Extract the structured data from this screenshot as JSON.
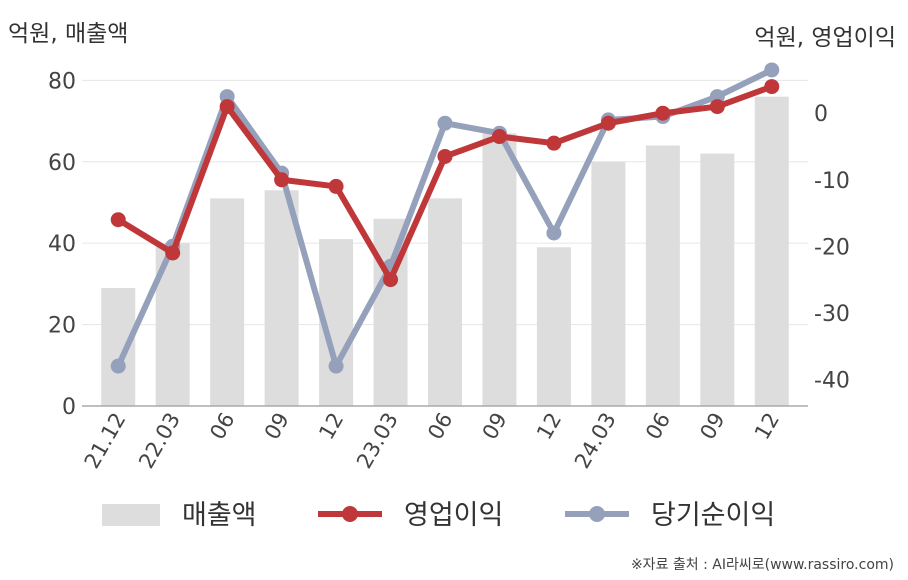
{
  "chart_data": {
    "type": "bar+line",
    "categories": [
      "21.12",
      "22.03",
      "06",
      "09",
      "12",
      "23.03",
      "06",
      "09",
      "12",
      "24.03",
      "06",
      "09",
      "12"
    ],
    "left_axis": {
      "label": "억원, 매출액",
      "ylim": [
        0,
        85
      ],
      "ticks": [
        0,
        20,
        40,
        60,
        80
      ]
    },
    "right_axis": {
      "label": "억원, 영업이익",
      "ylim": [
        -44,
        8
      ],
      "ticks": [
        0,
        -10,
        -20,
        -30,
        -40
      ]
    },
    "series": [
      {
        "name": "매출액",
        "type": "bar",
        "axis": "left",
        "color": "#dddddd",
        "values": [
          29,
          40,
          51,
          53,
          41,
          46,
          51,
          67,
          39,
          60,
          64,
          62,
          76
        ]
      },
      {
        "name": "영업이익",
        "type": "line",
        "axis": "right",
        "color": "#c0373a",
        "values": [
          -16,
          -21,
          1,
          -10,
          -11,
          -25,
          -6.5,
          -3.5,
          -4.5,
          -1.5,
          0,
          1,
          4
        ]
      },
      {
        "name": "당기순이익",
        "type": "line",
        "axis": "right",
        "color": "#95a1bb",
        "values": [
          -38,
          -20,
          2.5,
          -9,
          -38,
          -23,
          -1.5,
          -3,
          -18,
          -1,
          -0.5,
          2.5,
          6.5
        ]
      }
    ],
    "grid": true,
    "legend_position": "bottom"
  },
  "footer_text": "※자료 출처 : AI라씨로(www.rassiro.com)"
}
